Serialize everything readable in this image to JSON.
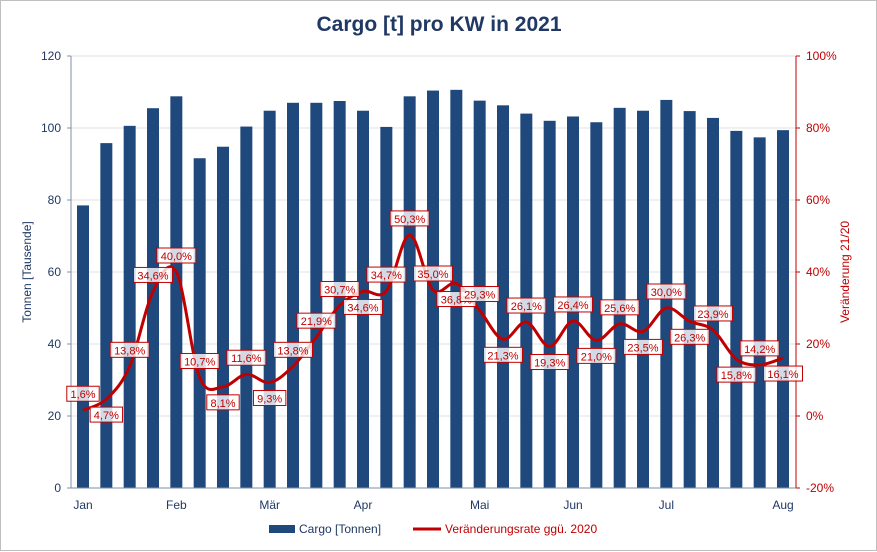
{
  "chart_data": {
    "type": "bar+line",
    "title": "Cargo [t] pro KW in 2021",
    "ylabel": "Tonnen [Tausende]",
    "y2label": "Veränderung 21/20",
    "ylim": [
      0,
      120
    ],
    "y2lim": [
      -20,
      100
    ],
    "yticks": [
      "0",
      "20",
      "40",
      "60",
      "80",
      "100",
      "120"
    ],
    "y2ticks": [
      "-20%",
      "0%",
      "20%",
      "40%",
      "60%",
      "80%",
      "100%"
    ],
    "month_labels": [
      "Jan",
      "Feb",
      "Mär",
      "Apr",
      "Mai",
      "Jun",
      "Jul",
      "Aug"
    ],
    "month_label_at_bar": [
      0,
      4,
      8,
      12,
      17,
      21,
      25,
      30
    ],
    "grid": true,
    "legend": "bottom",
    "colors": {
      "bars": "#1f497d",
      "line": "#c00000",
      "title": "#1f3864"
    },
    "series": [
      {
        "name": "Cargo [Tonnen]",
        "type": "bar",
        "axis": "left",
        "values": [
          78.5,
          95.8,
          100.6,
          105.5,
          108.8,
          91.6,
          94.8,
          100.4,
          104.8,
          107.0,
          107.0,
          107.5,
          104.8,
          100.3,
          108.8,
          110.4,
          110.6,
          107.6,
          106.3,
          104.0,
          102.0,
          103.2,
          101.6,
          105.6,
          104.8,
          107.8,
          104.7,
          102.8,
          99.2,
          97.4,
          99.4
        ]
      },
      {
        "name": "Veränderungsrate ggü. 2020",
        "type": "line",
        "axis": "right",
        "values": [
          1.6,
          4.7,
          13.8,
          34.6,
          40.0,
          10.7,
          8.1,
          11.6,
          9.3,
          13.8,
          21.9,
          30.7,
          34.6,
          34.7,
          50.3,
          35.0,
          36.8,
          29.3,
          21.3,
          26.1,
          19.3,
          26.4,
          21.0,
          25.6,
          23.5,
          30.0,
          26.3,
          23.9,
          15.8,
          14.2,
          16.1
        ],
        "labels": [
          "1,6%",
          "4,7%",
          "13,8%",
          "34,6%",
          "40,0%",
          "10,7%",
          "8,1%",
          "11,6%",
          "9,3%",
          "13,8%",
          "21,9%",
          "30,7%",
          "34,6%",
          "34,7%",
          "50,3%",
          "35,0%",
          "36,8%",
          "29,3%",
          "21,3%",
          "26,1%",
          "19,3%",
          "26,4%",
          "21,0%",
          "25,6%",
          "23,5%",
          "30,0%",
          "26,3%",
          "23,9%",
          "15,8%",
          "14,2%",
          "16,1%"
        ]
      }
    ]
  }
}
